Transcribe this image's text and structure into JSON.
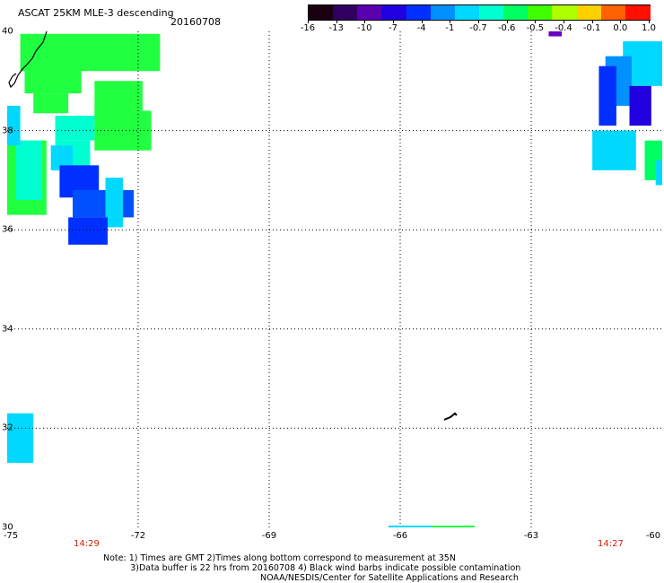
{
  "header": {
    "title": "ASCAT 25KM MLE-3 descending",
    "date": "20160708"
  },
  "colorbar": {
    "labels": [
      "-16",
      "-13",
      "-10",
      "-7",
      "-4",
      "-1",
      "-0.7",
      "-0.6",
      "-0.5",
      "-0.4",
      "-0.1",
      "0.0",
      "1.0"
    ],
    "colors": [
      "#1a0010",
      "#300060",
      "#5a00b0",
      "#2000e0",
      "#0030ff",
      "#0090ff",
      "#00d8ff",
      "#00ffd0",
      "#00ff60",
      "#40ff00",
      "#b0ff00",
      "#ffd000",
      "#ff6000",
      "#ff1000"
    ]
  },
  "map": {
    "lat_labels": [
      "40",
      "38",
      "36",
      "34",
      "32",
      "30"
    ],
    "lon_labels": [
      "-75",
      "-72",
      "-69",
      "-66",
      "-63",
      "-60"
    ],
    "time_labels": [
      "14:29",
      "14:27"
    ],
    "cells": [
      {
        "c": "#20ff40",
        "lon": -74.7,
        "lat": 39.95,
        "w": 3.2,
        "h": 0.75
      },
      {
        "c": "#20ff40",
        "lon": -74.6,
        "lat": 39.25,
        "w": 1.3,
        "h": 0.5
      },
      {
        "c": "#20ff40",
        "lon": -74.4,
        "lat": 38.75,
        "w": 0.8,
        "h": 0.4
      },
      {
        "c": "#20ff40",
        "lon": -73.0,
        "lat": 39.0,
        "w": 1.1,
        "h": 0.9
      },
      {
        "c": "#20ff40",
        "lon": -73.0,
        "lat": 38.4,
        "w": 1.3,
        "h": 0.8
      },
      {
        "c": "#20ff40",
        "lon": -75.0,
        "lat": 37.8,
        "w": 0.9,
        "h": 1.5
      },
      {
        "c": "#00ffd0",
        "lon": -74.8,
        "lat": 37.8,
        "w": 0.6,
        "h": 1.2
      },
      {
        "c": "#00d8ff",
        "lon": -75.0,
        "lat": 38.5,
        "w": 0.3,
        "h": 0.8
      },
      {
        "c": "#00ffd0",
        "lon": -73.9,
        "lat": 38.3,
        "w": 0.9,
        "h": 0.5
      },
      {
        "c": "#00ffd0",
        "lon": -73.9,
        "lat": 37.8,
        "w": 0.8,
        "h": 0.6
      },
      {
        "c": "#00d8ff",
        "lon": -74.0,
        "lat": 37.7,
        "w": 0.5,
        "h": 0.5
      },
      {
        "c": "#0030ff",
        "lon": -73.8,
        "lat": 37.3,
        "w": 0.9,
        "h": 0.65
      },
      {
        "c": "#0050ff",
        "lon": -73.5,
        "lat": 36.8,
        "w": 1.4,
        "h": 0.55
      },
      {
        "c": "#00d8ff",
        "lon": -72.75,
        "lat": 37.05,
        "w": 0.4,
        "h": 1.0
      },
      {
        "c": "#0030ff",
        "lon": -73.6,
        "lat": 36.25,
        "w": 0.9,
        "h": 0.55
      },
      {
        "c": "#00d8ff",
        "lon": -75.0,
        "lat": 32.3,
        "w": 0.6,
        "h": 1.0
      },
      {
        "c": "#00d8ff",
        "lon": -60.9,
        "lat": 39.8,
        "w": 1.4,
        "h": 0.9
      },
      {
        "c": "#0090ff",
        "lon": -61.3,
        "lat": 39.5,
        "w": 0.6,
        "h": 1.0
      },
      {
        "c": "#2000e0",
        "lon": -60.75,
        "lat": 38.9,
        "w": 0.5,
        "h": 0.8
      },
      {
        "c": "#0030ff",
        "lon": -61.45,
        "lat": 39.3,
        "w": 0.4,
        "h": 1.2
      },
      {
        "c": "#00d8ff",
        "lon": -61.6,
        "lat": 38.0,
        "w": 1.0,
        "h": 0.8
      },
      {
        "c": "#00ff60",
        "lon": -60.4,
        "lat": 37.8,
        "w": 0.4,
        "h": 0.8
      },
      {
        "c": "#00d8ff",
        "lon": -60.15,
        "lat": 37.4,
        "w": 0.15,
        "h": 0.5
      },
      {
        "c": "#6a00c0",
        "lon": -62.6,
        "lat": 40.05,
        "w": 0.3,
        "h": 0.15
      }
    ]
  },
  "notes": {
    "line1": "Note: 1) Times are GMT 2)Times along bottom correspond to measurement at 35N",
    "line2": "          3)Data buffer is 22 hrs from 20160708 4) Black wind barbs indicate possible contamination",
    "credit": "NOAA/NESDIS/Center for Satellite Applications and Research"
  }
}
